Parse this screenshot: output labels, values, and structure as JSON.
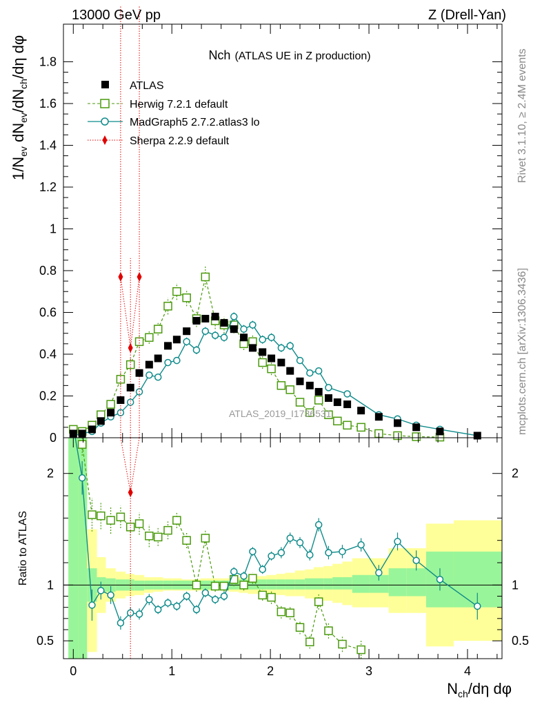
{
  "header": {
    "left": "13000 GeV pp",
    "right": "Z (Drell-Yan)"
  },
  "side_labels": {
    "top": "Rivet 3.1.10, ≥ 2.4M events",
    "bottom": "mcplots.cern.ch [arXiv:1306.3436]"
  },
  "watermark": "ATLAS_2019_I1736531",
  "colors": {
    "atlas": "#000000",
    "herwig": "#4a9a0c",
    "madgraph": "#0e8a8a",
    "sherpa": "#e00000",
    "band_inner": "#99f599",
    "band_outer": "#ffff99"
  },
  "chart_data": [
    {
      "type": "scatter",
      "panel": "main",
      "title": "Nch",
      "subtitle": "(ATLAS UE in Z production)",
      "ylabel_parts": [
        "1/N",
        "ev",
        " dN",
        "ev",
        "/dN",
        "ch",
        "/dη dφ"
      ],
      "xlim": [
        -0.1,
        4.35
      ],
      "ylim": [
        0,
        1.98
      ],
      "yticks": [
        "0",
        "0.2",
        "0.4",
        "0.6",
        "0.8",
        "1",
        "1.2",
        "1.4",
        "1.6",
        "1.8"
      ],
      "ytick_values": [
        0,
        0.2,
        0.4,
        0.6,
        0.8,
        1.0,
        1.2,
        1.4,
        1.6,
        1.8
      ],
      "legend": [
        "ATLAS",
        "Herwig 7.2.1 default",
        "MadGraph5 2.7.2.atlas3 lo",
        "Sherpa 2.2.9 default"
      ],
      "series": [
        {
          "name": "ATLAS",
          "style": "square-filled",
          "x": [
            0.0,
            0.09,
            0.19,
            0.28,
            0.38,
            0.48,
            0.58,
            0.67,
            0.77,
            0.86,
            0.96,
            1.05,
            1.15,
            1.25,
            1.34,
            1.44,
            1.53,
            1.63,
            1.73,
            1.82,
            1.92,
            2.01,
            2.11,
            2.2,
            2.3,
            2.4,
            2.49,
            2.59,
            2.68,
            2.78,
            2.92,
            3.1,
            3.29,
            3.48,
            3.72,
            4.1
          ],
          "y": [
            0.02,
            0.02,
            0.04,
            0.08,
            0.12,
            0.18,
            0.24,
            0.31,
            0.35,
            0.38,
            0.44,
            0.47,
            0.51,
            0.56,
            0.57,
            0.58,
            0.55,
            0.52,
            0.48,
            0.43,
            0.41,
            0.38,
            0.36,
            0.32,
            0.27,
            0.25,
            0.22,
            0.19,
            0.17,
            0.16,
            0.13,
            0.1,
            0.07,
            0.05,
            0.03,
            0.01
          ]
        },
        {
          "name": "Herwig 7.2.1 default",
          "style": "square-open-dashed",
          "x": [
            0.0,
            0.09,
            0.19,
            0.28,
            0.38,
            0.48,
            0.58,
            0.67,
            0.77,
            0.86,
            0.96,
            1.05,
            1.15,
            1.25,
            1.34,
            1.44,
            1.53,
            1.63,
            1.73,
            1.82,
            1.92,
            2.01,
            2.11,
            2.2,
            2.3,
            2.4,
            2.49,
            2.59,
            2.68,
            2.78,
            2.92,
            3.1,
            3.29,
            3.48,
            3.72
          ],
          "y": [
            0.04,
            0.03,
            0.06,
            0.11,
            0.16,
            0.28,
            0.35,
            0.46,
            0.48,
            0.52,
            0.63,
            0.7,
            0.67,
            0.57,
            0.77,
            0.56,
            0.54,
            0.54,
            0.45,
            0.46,
            0.36,
            0.33,
            0.25,
            0.23,
            0.17,
            0.12,
            0.18,
            0.11,
            0.08,
            0.06,
            0.05,
            0.02,
            0.01,
            0.005,
            0.003
          ],
          "err": [
            0.01,
            0.01,
            0.01,
            0.015,
            0.02,
            0.03,
            0.03,
            0.03,
            0.03,
            0.03,
            0.04,
            0.04,
            0.04,
            0.04,
            0.05,
            0.04,
            0.04,
            0.04,
            0.03,
            0.03,
            0.03,
            0.03,
            0.02,
            0.02,
            0.02,
            0.02,
            0.02,
            0.015,
            0.01,
            0.01,
            0.01,
            0.005,
            0.005,
            0.003,
            0.002
          ]
        },
        {
          "name": "MadGraph5 2.7.2.atlas3 lo",
          "style": "circle-open-solid",
          "x": [
            0.0,
            0.09,
            0.19,
            0.28,
            0.38,
            0.48,
            0.58,
            0.67,
            0.77,
            0.86,
            0.96,
            1.05,
            1.15,
            1.25,
            1.34,
            1.44,
            1.53,
            1.63,
            1.73,
            1.82,
            1.92,
            2.01,
            2.11,
            2.2,
            2.3,
            2.4,
            2.49,
            2.59,
            2.78,
            3.1,
            3.29,
            3.48,
            3.72,
            4.1
          ],
          "y": [
            0.01,
            0.02,
            0.03,
            0.07,
            0.1,
            0.12,
            0.17,
            0.22,
            0.3,
            0.29,
            0.36,
            0.37,
            0.46,
            0.42,
            0.51,
            0.49,
            0.48,
            0.58,
            0.52,
            0.54,
            0.47,
            0.48,
            0.43,
            0.44,
            0.37,
            0.31,
            0.32,
            0.24,
            0.21,
            0.11,
            0.09,
            0.06,
            0.04,
            0.01
          ],
          "err": [
            0.005,
            0.005,
            0.01,
            0.01,
            0.01,
            0.01,
            0.01,
            0.01,
            0.015,
            0.015,
            0.015,
            0.015,
            0.02,
            0.02,
            0.02,
            0.02,
            0.02,
            0.02,
            0.02,
            0.02,
            0.02,
            0.02,
            0.02,
            0.02,
            0.015,
            0.015,
            0.015,
            0.01,
            0.01,
            0.01,
            0.005,
            0.005,
            0.003,
            0.002
          ]
        },
        {
          "name": "Sherpa 2.2.9 default",
          "style": "diamond-filled-dotted",
          "x": [
            0.48,
            0.58,
            0.67
          ],
          "y": [
            0.77,
            0.43,
            0.77
          ],
          "err_lo": [
            0.77,
            0.43,
            0.77
          ],
          "err_hi": [
            1.3,
            0.43,
            1.3
          ]
        }
      ]
    },
    {
      "type": "scatter",
      "panel": "ratio",
      "ylabel": "Ratio to ATLAS",
      "xlabel_parts": [
        "N",
        "ch",
        "/dη dφ"
      ],
      "xlim": [
        -0.1,
        4.35
      ],
      "ylim": [
        0.34,
        2.32
      ],
      "xticks": [
        "0",
        "1",
        "2",
        "3",
        "4"
      ],
      "xtick_values": [
        0,
        1,
        2,
        3,
        4
      ],
      "yticks": [
        "0.5",
        "1",
        "2"
      ],
      "ytick_values": [
        0.5,
        1.0,
        2.0
      ],
      "reference_line": 1.0,
      "band_edges": [
        -0.05,
        0.05,
        0.14,
        0.24,
        0.33,
        0.43,
        0.53,
        0.62,
        0.72,
        0.81,
        0.91,
        1.0,
        1.1,
        1.2,
        1.29,
        1.39,
        1.48,
        1.58,
        1.68,
        1.77,
        1.87,
        1.96,
        2.06,
        2.15,
        2.25,
        2.35,
        2.44,
        2.54,
        2.63,
        2.73,
        2.83,
        3.0,
        3.2,
        3.38,
        3.58,
        3.86,
        4.35
      ],
      "band_inner_lo": [
        0.34,
        0.34,
        0.85,
        0.93,
        0.94,
        0.95,
        0.95,
        0.95,
        0.96,
        0.96,
        0.96,
        0.96,
        0.96,
        0.96,
        0.96,
        0.96,
        0.96,
        0.96,
        0.96,
        0.96,
        0.96,
        0.96,
        0.96,
        0.96,
        0.96,
        0.96,
        0.96,
        0.96,
        0.96,
        0.96,
        0.93,
        0.93,
        0.9,
        0.9,
        0.8,
        0.8
      ],
      "band_inner_hi": [
        2.32,
        2.32,
        1.15,
        1.07,
        1.06,
        1.05,
        1.05,
        1.04,
        1.04,
        1.04,
        1.04,
        1.04,
        1.04,
        1.04,
        1.04,
        1.04,
        1.04,
        1.04,
        1.05,
        1.05,
        1.05,
        1.05,
        1.05,
        1.05,
        1.05,
        1.06,
        1.06,
        1.06,
        1.07,
        1.07,
        1.09,
        1.09,
        1.15,
        1.15,
        1.3,
        1.3
      ],
      "band_outer_lo": [
        0.34,
        0.34,
        0.4,
        0.75,
        0.85,
        0.88,
        0.9,
        0.91,
        0.93,
        0.94,
        0.95,
        0.95,
        0.95,
        0.95,
        0.95,
        0.95,
        0.95,
        0.94,
        0.93,
        0.92,
        0.92,
        0.92,
        0.91,
        0.9,
        0.9,
        0.88,
        0.86,
        0.86,
        0.84,
        0.82,
        0.8,
        0.8,
        0.75,
        0.75,
        0.45,
        0.5
      ],
      "band_outer_hi": [
        2.32,
        2.32,
        1.5,
        1.25,
        1.15,
        1.12,
        1.1,
        1.09,
        1.07,
        1.07,
        1.06,
        1.06,
        1.05,
        1.05,
        1.06,
        1.06,
        1.06,
        1.06,
        1.07,
        1.08,
        1.08,
        1.09,
        1.1,
        1.11,
        1.13,
        1.14,
        1.16,
        1.17,
        1.19,
        1.21,
        1.24,
        1.24,
        1.33,
        1.33,
        1.55,
        1.58
      ],
      "series": [
        {
          "name": "Herwig 7.2.1 default",
          "x": [
            0.09,
            0.19,
            0.28,
            0.38,
            0.48,
            0.58,
            0.67,
            0.77,
            0.86,
            0.96,
            1.05,
            1.15,
            1.25,
            1.34,
            1.44,
            1.53,
            1.63,
            1.73,
            1.82,
            1.92,
            2.01,
            2.11,
            2.2,
            2.3,
            2.4,
            2.49,
            2.59,
            2.73,
            2.92
          ],
          "y": [
            2.26,
            1.63,
            1.62,
            1.58,
            1.61,
            1.52,
            1.55,
            1.44,
            1.43,
            1.49,
            1.58,
            1.4,
            1.0,
            1.42,
            0.99,
            0.99,
            1.05,
            1.0,
            1.06,
            0.91,
            0.89,
            0.76,
            0.75,
            0.62,
            0.49,
            0.85,
            0.59,
            0.47,
            0.42
          ],
          "err": [
            0.1,
            0.15,
            0.12,
            0.12,
            0.1,
            0.1,
            0.1,
            0.1,
            0.08,
            0.08,
            0.07,
            0.07,
            0.06,
            0.07,
            0.05,
            0.05,
            0.06,
            0.05,
            0.05,
            0.05,
            0.06,
            0.06,
            0.06,
            0.06,
            0.06,
            0.07,
            0.07,
            0.07,
            0.08
          ]
        },
        {
          "name": "MadGraph5 2.7.2.atlas3 lo",
          "x": [
            0.09,
            0.19,
            0.28,
            0.38,
            0.48,
            0.58,
            0.67,
            0.77,
            0.86,
            0.96,
            1.05,
            1.15,
            1.25,
            1.34,
            1.44,
            1.53,
            1.63,
            1.73,
            1.82,
            1.92,
            2.01,
            2.11,
            2.2,
            2.3,
            2.4,
            2.49,
            2.59,
            2.73,
            2.92,
            3.1,
            3.29,
            3.48,
            3.72,
            4.1
          ],
          "y": [
            1.96,
            0.82,
            0.95,
            0.91,
            0.66,
            0.75,
            0.74,
            0.87,
            0.78,
            0.84,
            0.81,
            0.9,
            0.78,
            0.93,
            0.87,
            0.9,
            1.12,
            1.08,
            1.3,
            1.14,
            1.26,
            1.29,
            1.42,
            1.38,
            1.27,
            1.54,
            1.29,
            1.3,
            1.36,
            1.11,
            1.39,
            1.22,
            1.05,
            0.81
          ],
          "err": [
            0.15,
            0.14,
            0.08,
            0.08,
            0.06,
            0.05,
            0.05,
            0.05,
            0.04,
            0.04,
            0.04,
            0.04,
            0.04,
            0.04,
            0.04,
            0.04,
            0.04,
            0.04,
            0.04,
            0.04,
            0.04,
            0.05,
            0.05,
            0.05,
            0.05,
            0.06,
            0.06,
            0.06,
            0.06,
            0.07,
            0.08,
            0.09,
            0.1,
            0.12
          ]
        },
        {
          "name": "Sherpa 2.2.9 default",
          "x": [
            0.58
          ],
          "y": [
            1.83
          ],
          "err_lo": [
            1.49
          ],
          "err_hi": [
            0.49
          ]
        }
      ]
    }
  ]
}
